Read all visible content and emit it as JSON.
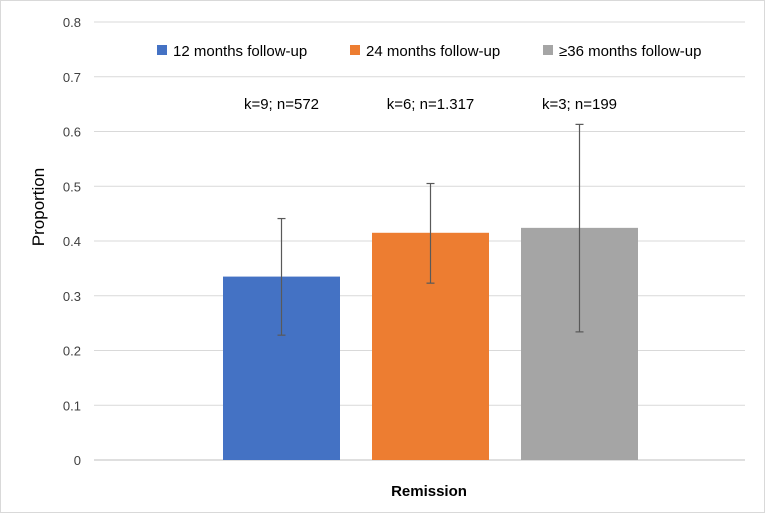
{
  "chart_data": {
    "type": "bar",
    "categories": [
      "Remission"
    ],
    "xlabel": "Remission",
    "ylabel": "Proportion",
    "ylim": [
      0,
      0.8
    ],
    "yticks": [
      "0",
      "0.1",
      "0.2",
      "0.3",
      "0.4",
      "0.5",
      "0.6",
      "0.7",
      "0.8"
    ],
    "grid": true,
    "legend_position": "top",
    "series": [
      {
        "name": "12 months follow-up",
        "color": "#4472C4",
        "value": 0.335,
        "error_low": 0.228,
        "error_high": 0.441,
        "annotation": "k=9; n=572"
      },
      {
        "name": "24 months follow-up",
        "color": "#ED7D31",
        "value": 0.415,
        "error_low": 0.323,
        "error_high": 0.505,
        "annotation": "k=6; n=1.317"
      },
      {
        "name": "≥36 months follow-up",
        "color": "#A5A5A5",
        "value": 0.424,
        "error_low": 0.234,
        "error_high": 0.613,
        "annotation": "k=3; n=199"
      }
    ]
  }
}
